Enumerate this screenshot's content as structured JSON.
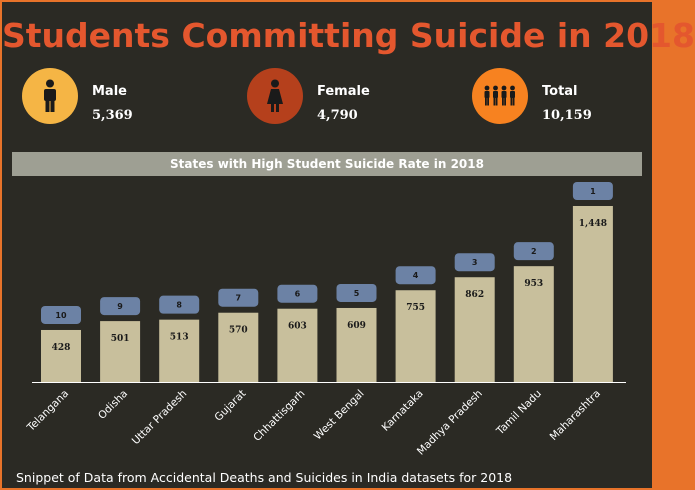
{
  "title": "Students Committing Suicide in 2018",
  "stats": {
    "male": {
      "label": "Male",
      "value": "5,369",
      "icon": "male-person-icon",
      "color": "#f5b545"
    },
    "female": {
      "label": "Female",
      "value": "4,790",
      "icon": "female-person-icon",
      "color": "#b5401c"
    },
    "total": {
      "label": "Total",
      "value": "10,159",
      "icon": "group-people-icon",
      "color": "#f78220"
    }
  },
  "chart_data": {
    "type": "bar",
    "title": "States with High Student Suicide Rate in 2018",
    "categories": [
      "Telangana",
      "Odisha",
      "Uttar Pradesh",
      "Gujarat",
      "Chhattisgarh",
      "West Bengal",
      "Karnataka",
      "Madhya Pradesh",
      "Tamil Nadu",
      "Maharashtra"
    ],
    "values": [
      428,
      501,
      513,
      570,
      603,
      609,
      755,
      862,
      953,
      1448
    ],
    "value_labels": [
      "428",
      "501",
      "513",
      "570",
      "603",
      "609",
      "755",
      "862",
      "953",
      "1,448"
    ],
    "ranks": [
      "10",
      "9",
      "8",
      "7",
      "6",
      "5",
      "4",
      "3",
      "2",
      "1"
    ],
    "ylim": [
      0,
      1448
    ],
    "grid": false,
    "colors": {
      "bar": "#c8bf9c",
      "rank_badge": "#6c82a5",
      "axis": "#ffffff"
    }
  },
  "footer": "Snippet of Data from Accidental Deaths and Suicides in India datasets for 2018"
}
